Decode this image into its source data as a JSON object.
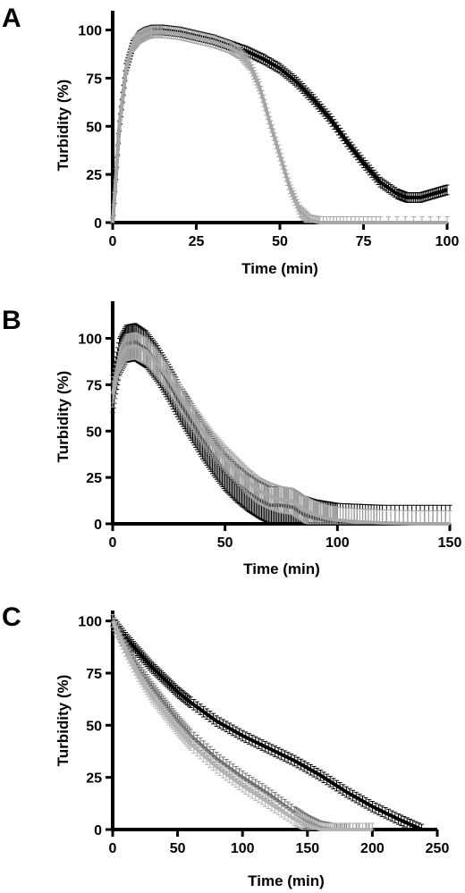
{
  "chart_data": [
    {
      "type": "line",
      "panel": "A",
      "xlabel": "Time (min)",
      "ylabel": "Turbidity (%)",
      "xlim": [
        0,
        100
      ],
      "ylim": [
        0,
        110
      ],
      "xticks": [
        0,
        25,
        50,
        75,
        100
      ],
      "yticks": [
        0,
        25,
        50,
        75,
        100
      ],
      "series": [
        {
          "color": "#000000",
          "error": 2.5,
          "x": [
            0,
            2,
            4,
            6,
            8,
            10,
            12,
            15,
            20,
            25,
            30,
            35,
            40,
            45,
            50,
            55,
            60,
            65,
            70,
            75,
            80,
            85,
            88,
            92,
            96,
            100
          ],
          "y": [
            0,
            50,
            80,
            92,
            97,
            99,
            100,
            100,
            99,
            97,
            95,
            92,
            89,
            85,
            80,
            73,
            64,
            54,
            42,
            31,
            21,
            15,
            13,
            13,
            15,
            17
          ]
        },
        {
          "color": "#a6a6a6",
          "error": 3,
          "x": [
            0,
            2,
            4,
            6,
            8,
            10,
            12,
            15,
            20,
            25,
            30,
            35,
            38,
            41,
            44,
            47,
            50,
            53,
            56,
            59,
            62,
            70,
            80,
            100
          ],
          "y": [
            0,
            50,
            80,
            92,
            96,
            98,
            99,
            99,
            98,
            96,
            94,
            91,
            88,
            82,
            70,
            52,
            35,
            18,
            6,
            1,
            0,
            0,
            0,
            0
          ]
        }
      ]
    },
    {
      "type": "line",
      "panel": "B",
      "xlabel": "Time (min)",
      "ylabel": "Turbidity (%)",
      "xlim": [
        0,
        150
      ],
      "ylim": [
        0,
        120
      ],
      "xticks": [
        0,
        50,
        100,
        150
      ],
      "yticks": [
        0,
        25,
        50,
        75,
        100
      ],
      "series": [
        {
          "color": "#000000",
          "error": 10,
          "x": [
            0,
            3,
            6,
            10,
            15,
            20,
            25,
            30,
            35,
            40,
            45,
            50,
            55,
            60,
            65,
            70,
            75,
            80,
            85,
            90,
            95,
            100,
            110,
            120,
            135,
            150
          ],
          "y": [
            70,
            90,
            97,
            98,
            94,
            86,
            76,
            65,
            55,
            45,
            36,
            28,
            22,
            17,
            13,
            10,
            10,
            9,
            5,
            3,
            2,
            1,
            0.5,
            0,
            0,
            0
          ]
        },
        {
          "color": "#a6a6a6",
          "error": 7,
          "x": [
            0,
            3,
            6,
            10,
            15,
            20,
            25,
            30,
            35,
            40,
            45,
            50,
            55,
            60,
            65,
            70,
            75,
            80,
            85,
            90,
            95,
            100,
            110,
            120,
            135,
            150
          ],
          "y": [
            70,
            88,
            95,
            96,
            93,
            86,
            78,
            68,
            59,
            50,
            42,
            35,
            29,
            23,
            18,
            15,
            13,
            12,
            8,
            5,
            3,
            2,
            1,
            0.5,
            0,
            0
          ]
        }
      ]
    },
    {
      "type": "line",
      "panel": "C",
      "xlabel": "Time (min)",
      "ylabel": "Turbidity (%)",
      "xlim": [
        0,
        250
      ],
      "ylim": [
        0,
        105
      ],
      "xticks": [
        0,
        50,
        100,
        150,
        200,
        250
      ],
      "yticks": [
        0,
        25,
        50,
        75,
        100
      ],
      "series": [
        {
          "color": "#000000",
          "error": 2.5,
          "x": [
            0,
            10,
            20,
            30,
            40,
            50,
            60,
            80,
            100,
            120,
            140,
            160,
            180,
            200,
            220,
            238
          ],
          "y": [
            100,
            92,
            85,
            78,
            72,
            66,
            61,
            52,
            45,
            39,
            33,
            26,
            18,
            11,
            5,
            0
          ]
        },
        {
          "color": "#6e6e6e",
          "error": 3,
          "x": [
            0,
            10,
            20,
            30,
            40,
            50,
            60,
            80,
            100,
            120,
            140,
            150,
            160,
            170,
            180,
            200
          ],
          "y": [
            100,
            88,
            77,
            68,
            60,
            52,
            45,
            34,
            25,
            17,
            8,
            4,
            1,
            0,
            0,
            0
          ]
        },
        {
          "color": "#b3b3b3",
          "error": 3,
          "x": [
            0,
            10,
            20,
            30,
            40,
            50,
            60,
            80,
            100,
            120,
            140,
            150,
            160,
            170,
            200
          ],
          "y": [
            100,
            86,
            74,
            64,
            56,
            48,
            41,
            30,
            21,
            13,
            5,
            2,
            0,
            0,
            0
          ]
        }
      ]
    }
  ]
}
